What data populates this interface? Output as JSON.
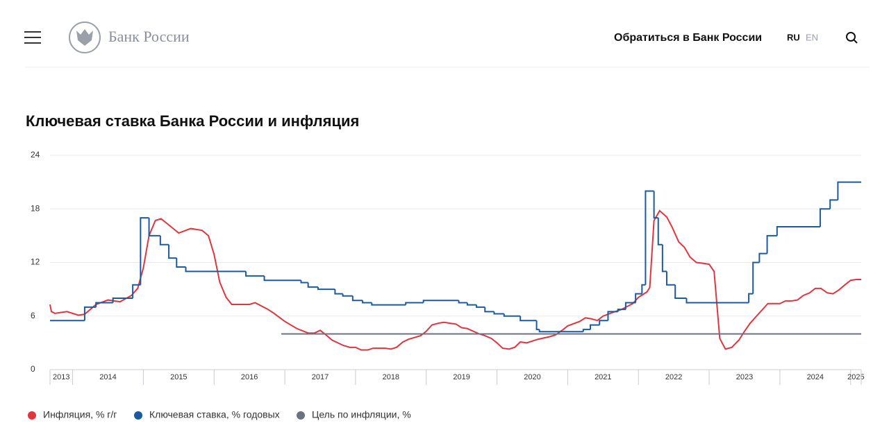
{
  "header": {
    "brand": "Банк России",
    "contact": "Обратиться в Банк России",
    "lang_ru": "RU",
    "lang_en": "EN"
  },
  "chart_data": {
    "type": "line",
    "title": "Ключевая ставка Банка России и инфляция",
    "xlim": [
      2013.68,
      2025.15
    ],
    "ylim": [
      0,
      24
    ],
    "yticks": [
      0,
      6,
      12,
      18,
      24
    ],
    "xticks": [
      {
        "value": 2013,
        "label": "2013"
      },
      {
        "value": 2014,
        "label": "2014"
      },
      {
        "value": 2015,
        "label": "2015"
      },
      {
        "value": 2016,
        "label": "2016"
      },
      {
        "value": 2017,
        "label": "2017"
      },
      {
        "value": 2018,
        "label": "2018"
      },
      {
        "value": 2019,
        "label": "2019"
      },
      {
        "value": 2020,
        "label": "2020"
      },
      {
        "value": 2021,
        "label": "2021"
      },
      {
        "value": 2022,
        "label": "2022"
      },
      {
        "value": 2023,
        "label": "2023"
      },
      {
        "value": 2024,
        "label": "2024"
      },
      {
        "value": 2025,
        "label": "2025"
      }
    ],
    "grid": true,
    "legend": "bottom-left",
    "series": [
      {
        "name": "Инфляция, % г/г",
        "color": "#e0343f",
        "step": false,
        "x": [
          2013.68,
          2013.7,
          2013.75,
          2013.92,
          2014.08,
          2014.17,
          2014.33,
          2014.5,
          2014.67,
          2014.83,
          2014.92,
          2015.0,
          2015.08,
          2015.17,
          2015.25,
          2015.33,
          2015.5,
          2015.67,
          2015.83,
          2015.92,
          2016.0,
          2016.08,
          2016.17,
          2016.25,
          2016.5,
          2016.58,
          2016.75,
          2016.83,
          2017.0,
          2017.17,
          2017.33,
          2017.42,
          2017.5,
          2017.58,
          2017.67,
          2017.83,
          2017.92,
          2018.0,
          2018.08,
          2018.17,
          2018.25,
          2018.42,
          2018.5,
          2018.58,
          2018.67,
          2018.75,
          2018.92,
          2019.0,
          2019.08,
          2019.17,
          2019.25,
          2019.42,
          2019.5,
          2019.58,
          2019.75,
          2019.83,
          2019.92,
          2020.0,
          2020.08,
          2020.17,
          2020.25,
          2020.33,
          2020.42,
          2020.58,
          2020.75,
          2020.83,
          2020.92,
          2021.0,
          2021.17,
          2021.25,
          2021.33,
          2021.42,
          2021.5,
          2021.67,
          2021.75,
          2021.92,
          2022.0,
          2022.06,
          2022.12,
          2022.16,
          2022.22,
          2022.3,
          2022.4,
          2022.48,
          2022.57,
          2022.65,
          2022.73,
          2022.82,
          2022.92,
          2023.0,
          2023.07,
          2023.15,
          2023.23,
          2023.32,
          2023.42,
          2023.5,
          2023.58,
          2023.67,
          2023.75,
          2023.83,
          2023.92,
          2024.0,
          2024.08,
          2024.17,
          2024.25,
          2024.33,
          2024.42,
          2024.5,
          2024.58,
          2024.67,
          2024.75,
          2024.83,
          2024.92,
          2025.0,
          2025.08,
          2025.15
        ],
        "values": [
          7.3,
          6.5,
          6.3,
          6.5,
          6.1,
          6.2,
          7.3,
          7.8,
          7.6,
          8.3,
          9.1,
          11.4,
          15.0,
          16.7,
          16.9,
          16.4,
          15.3,
          15.8,
          15.6,
          15.0,
          12.9,
          9.8,
          8.1,
          7.3,
          7.3,
          7.5,
          6.8,
          6.4,
          5.4,
          4.6,
          4.1,
          4.1,
          4.4,
          3.9,
          3.3,
          2.7,
          2.5,
          2.5,
          2.2,
          2.2,
          2.4,
          2.4,
          2.3,
          2.5,
          3.1,
          3.4,
          3.8,
          4.3,
          5.0,
          5.2,
          5.3,
          5.1,
          4.7,
          4.6,
          4.0,
          3.8,
          3.5,
          3.0,
          2.4,
          2.3,
          2.5,
          3.1,
          3.0,
          3.4,
          3.7,
          3.9,
          4.4,
          4.9,
          5.4,
          5.8,
          5.7,
          5.5,
          6.0,
          6.5,
          6.7,
          7.4,
          8.1,
          8.4,
          8.7,
          9.2,
          16.7,
          17.8,
          17.1,
          15.9,
          14.3,
          13.7,
          12.6,
          12.0,
          11.9,
          11.8,
          11.0,
          3.5,
          2.3,
          2.5,
          3.3,
          4.3,
          5.2,
          6.0,
          6.7,
          7.4,
          7.4,
          7.4,
          7.7,
          7.7,
          7.8,
          8.3,
          8.6,
          9.1,
          9.1,
          8.6,
          8.5,
          8.9,
          9.5,
          10.0,
          10.1,
          10.1
        ]
      },
      {
        "name": "Ключевая ставка, % годовых",
        "color": "#1b5aa0",
        "step": true,
        "x": [
          2013.68,
          2014.17,
          2014.33,
          2014.57,
          2014.85,
          2014.96,
          2015.08,
          2015.24,
          2015.36,
          2015.47,
          2015.6,
          2016.45,
          2016.71,
          2017.23,
          2017.33,
          2017.47,
          2017.71,
          2017.82,
          2017.96,
          2018.1,
          2018.23,
          2018.71,
          2018.96,
          2019.46,
          2019.58,
          2019.71,
          2019.83,
          2019.96,
          2020.1,
          2020.33,
          2020.56,
          2020.6,
          2021.22,
          2021.32,
          2021.45,
          2021.57,
          2021.71,
          2021.82,
          2021.96,
          2022.05,
          2022.1,
          2022.22,
          2022.28,
          2022.34,
          2022.4,
          2022.52,
          2022.68,
          2023.56,
          2023.62,
          2023.71,
          2023.82,
          2023.96,
          2024.57,
          2024.71,
          2024.82,
          2025.15
        ],
        "values": [
          5.5,
          7.0,
          7.5,
          8.0,
          9.5,
          17,
          15,
          14,
          12.5,
          11.5,
          11,
          10.5,
          10,
          9.75,
          9.25,
          9,
          8.5,
          8.25,
          7.75,
          7.5,
          7.25,
          7.5,
          7.75,
          7.5,
          7.25,
          7,
          6.5,
          6.25,
          6,
          5.5,
          4.5,
          4.25,
          4.5,
          5,
          5.5,
          6.5,
          6.75,
          7.5,
          8.5,
          9.5,
          20,
          17,
          14,
          11,
          9.5,
          8,
          7.5,
          8.5,
          12,
          13,
          15,
          16,
          18,
          19,
          21,
          21
        ]
      },
      {
        "name": "Цель по инфляции, %",
        "color": "#6b7280",
        "step": false,
        "x": [
          2016.95,
          2025.15
        ],
        "values": [
          4,
          4
        ]
      }
    ]
  }
}
